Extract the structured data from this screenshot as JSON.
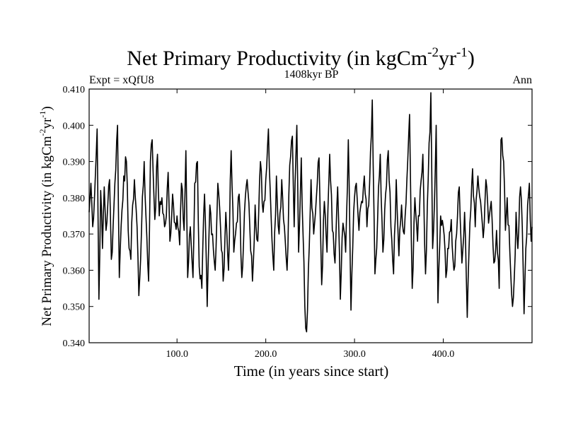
{
  "chart_data": {
    "type": "line",
    "title": "Net Primary Productivity (in kgCm",
    "title_sup1": "-2",
    "title_mid": "yr",
    "title_sup2": "-1",
    "title_end": ")",
    "subtitle_left": "Expt = xQfU8",
    "subtitle_center": "1408kyr BP",
    "subtitle_right": "Ann",
    "xlabel": "Time (in years since start)",
    "ylabel_main": "Net Primary Productivity (in kgCm",
    "ylabel_sup1": "-2",
    "ylabel_mid": "yr",
    "ylabel_sup2": "-1",
    "ylabel_end": ")",
    "xlim": [
      1,
      500
    ],
    "ylim": [
      0.34,
      0.41
    ],
    "x_ticks": [
      100,
      200,
      300,
      400
    ],
    "x_tick_labels": [
      "100.0",
      "200.0",
      "300.0",
      "400.0"
    ],
    "y_ticks": [
      0.34,
      0.35,
      0.36,
      0.37,
      0.38,
      0.39,
      0.4,
      0.41
    ],
    "y_tick_labels": [
      "0.340",
      "0.350",
      "0.360",
      "0.370",
      "0.380",
      "0.390",
      "0.400",
      "0.410"
    ],
    "series": [
      {
        "name": "Net Primary Productivity",
        "color": "#000000",
        "anchors": [
          [
            1,
            0.376
          ],
          [
            3,
            0.384
          ],
          [
            5,
            0.372
          ],
          [
            8,
            0.386
          ],
          [
            10,
            0.399
          ],
          [
            12,
            0.352
          ],
          [
            14,
            0.382
          ],
          [
            16,
            0.366
          ],
          [
            18,
            0.383
          ],
          [
            20,
            0.371
          ],
          [
            22,
            0.378
          ],
          [
            24,
            0.385
          ],
          [
            26,
            0.363
          ],
          [
            28,
            0.372
          ],
          [
            30,
            0.384
          ],
          [
            33,
            0.4
          ],
          [
            35,
            0.358
          ],
          [
            37,
            0.372
          ],
          [
            40,
            0.386
          ],
          [
            43,
            0.39
          ],
          [
            45,
            0.371
          ],
          [
            48,
            0.363
          ],
          [
            50,
            0.378
          ],
          [
            52,
            0.385
          ],
          [
            55,
            0.372
          ],
          [
            57,
            0.353
          ],
          [
            60,
            0.371
          ],
          [
            63,
            0.39
          ],
          [
            65,
            0.375
          ],
          [
            68,
            0.357
          ],
          [
            70,
            0.39
          ],
          [
            72,
            0.396
          ],
          [
            75,
            0.374
          ],
          [
            78,
            0.392
          ],
          [
            80,
            0.375
          ],
          [
            83,
            0.38
          ],
          [
            86,
            0.372
          ],
          [
            88,
            0.375
          ],
          [
            90,
            0.387
          ],
          [
            92,
            0.368
          ],
          [
            95,
            0.381
          ],
          [
            98,
            0.373
          ],
          [
            100,
            0.375
          ],
          [
            103,
            0.367
          ],
          [
            105,
            0.384
          ],
          [
            108,
            0.371
          ],
          [
            110,
            0.393
          ],
          [
            112,
            0.358
          ],
          [
            115,
            0.372
          ],
          [
            118,
            0.358
          ],
          [
            120,
            0.384
          ],
          [
            123,
            0.39
          ],
          [
            125,
            0.361
          ],
          [
            128,
            0.355
          ],
          [
            131,
            0.381
          ],
          [
            134,
            0.35
          ],
          [
            137,
            0.378
          ],
          [
            140,
            0.37
          ],
          [
            143,
            0.36
          ],
          [
            146,
            0.384
          ],
          [
            149,
            0.372
          ],
          [
            152,
            0.357
          ],
          [
            155,
            0.376
          ],
          [
            158,
            0.36
          ],
          [
            161,
            0.393
          ],
          [
            164,
            0.365
          ],
          [
            167,
            0.373
          ],
          [
            170,
            0.381
          ],
          [
            173,
            0.358
          ],
          [
            176,
            0.376
          ],
          [
            179,
            0.385
          ],
          [
            182,
            0.372
          ],
          [
            185,
            0.357
          ],
          [
            188,
            0.378
          ],
          [
            191,
            0.368
          ],
          [
            194,
            0.39
          ],
          [
            197,
            0.376
          ],
          [
            200,
            0.385
          ],
          [
            203,
            0.399
          ],
          [
            206,
            0.375
          ],
          [
            209,
            0.36
          ],
          [
            212,
            0.386
          ],
          [
            215,
            0.37
          ],
          [
            218,
            0.385
          ],
          [
            221,
            0.372
          ],
          [
            224,
            0.36
          ],
          [
            227,
            0.389
          ],
          [
            230,
            0.397
          ],
          [
            232,
            0.372
          ],
          [
            235,
            0.4
          ],
          [
            237,
            0.365
          ],
          [
            240,
            0.391
          ],
          [
            242,
            0.37
          ],
          [
            244,
            0.35
          ],
          [
            246,
            0.343
          ],
          [
            248,
            0.36
          ],
          [
            251,
            0.385
          ],
          [
            254,
            0.37
          ],
          [
            257,
            0.38
          ],
          [
            260,
            0.391
          ],
          [
            263,
            0.356
          ],
          [
            266,
            0.379
          ],
          [
            269,
            0.365
          ],
          [
            272,
            0.392
          ],
          [
            275,
            0.371
          ],
          [
            278,
            0.362
          ],
          [
            281,
            0.383
          ],
          [
            284,
            0.352
          ],
          [
            287,
            0.373
          ],
          [
            290,
            0.365
          ],
          [
            293,
            0.396
          ],
          [
            296,
            0.349
          ],
          [
            299,
            0.376
          ],
          [
            302,
            0.384
          ],
          [
            305,
            0.371
          ],
          [
            308,
            0.379
          ],
          [
            311,
            0.386
          ],
          [
            314,
            0.372
          ],
          [
            317,
            0.384
          ],
          [
            320,
            0.407
          ],
          [
            323,
            0.359
          ],
          [
            326,
            0.374
          ],
          [
            329,
            0.392
          ],
          [
            332,
            0.365
          ],
          [
            335,
            0.381
          ],
          [
            338,
            0.393
          ],
          [
            341,
            0.372
          ],
          [
            344,
            0.359
          ],
          [
            347,
            0.385
          ],
          [
            350,
            0.364
          ],
          [
            353,
            0.378
          ],
          [
            356,
            0.37
          ],
          [
            359,
            0.385
          ],
          [
            362,
            0.403
          ],
          [
            365,
            0.355
          ],
          [
            368,
            0.38
          ],
          [
            371,
            0.368
          ],
          [
            374,
            0.382
          ],
          [
            377,
            0.392
          ],
          [
            380,
            0.359
          ],
          [
            383,
            0.385
          ],
          [
            386,
            0.409
          ],
          [
            388,
            0.366
          ],
          [
            390,
            0.378
          ],
          [
            392,
            0.4
          ],
          [
            394,
            0.351
          ],
          [
            397,
            0.375
          ],
          [
            400,
            0.372
          ],
          [
            403,
            0.358
          ],
          [
            406,
            0.366
          ],
          [
            409,
            0.374
          ],
          [
            412,
            0.36
          ],
          [
            415,
            0.37
          ],
          [
            418,
            0.383
          ],
          [
            421,
            0.362
          ],
          [
            424,
            0.376
          ],
          [
            427,
            0.347
          ],
          [
            430,
            0.373
          ],
          [
            433,
            0.388
          ],
          [
            436,
            0.372
          ],
          [
            439,
            0.386
          ],
          [
            442,
            0.379
          ],
          [
            445,
            0.369
          ],
          [
            448,
            0.385
          ],
          [
            451,
            0.373
          ],
          [
            454,
            0.379
          ],
          [
            457,
            0.362
          ],
          [
            460,
            0.371
          ],
          [
            463,
            0.355
          ],
          [
            465,
            0.396
          ],
          [
            468,
            0.39
          ],
          [
            470,
            0.371
          ],
          [
            472,
            0.38
          ],
          [
            475,
            0.365
          ],
          [
            478,
            0.35
          ],
          [
            480,
            0.358
          ],
          [
            482,
            0.376
          ],
          [
            484,
            0.366
          ],
          [
            487,
            0.383
          ],
          [
            489,
            0.372
          ],
          [
            491,
            0.348
          ],
          [
            493,
            0.366
          ],
          [
            495,
            0.378
          ],
          [
            497,
            0.384
          ],
          [
            499,
            0.368
          ],
          [
            500,
            0.372
          ]
        ]
      }
    ]
  }
}
